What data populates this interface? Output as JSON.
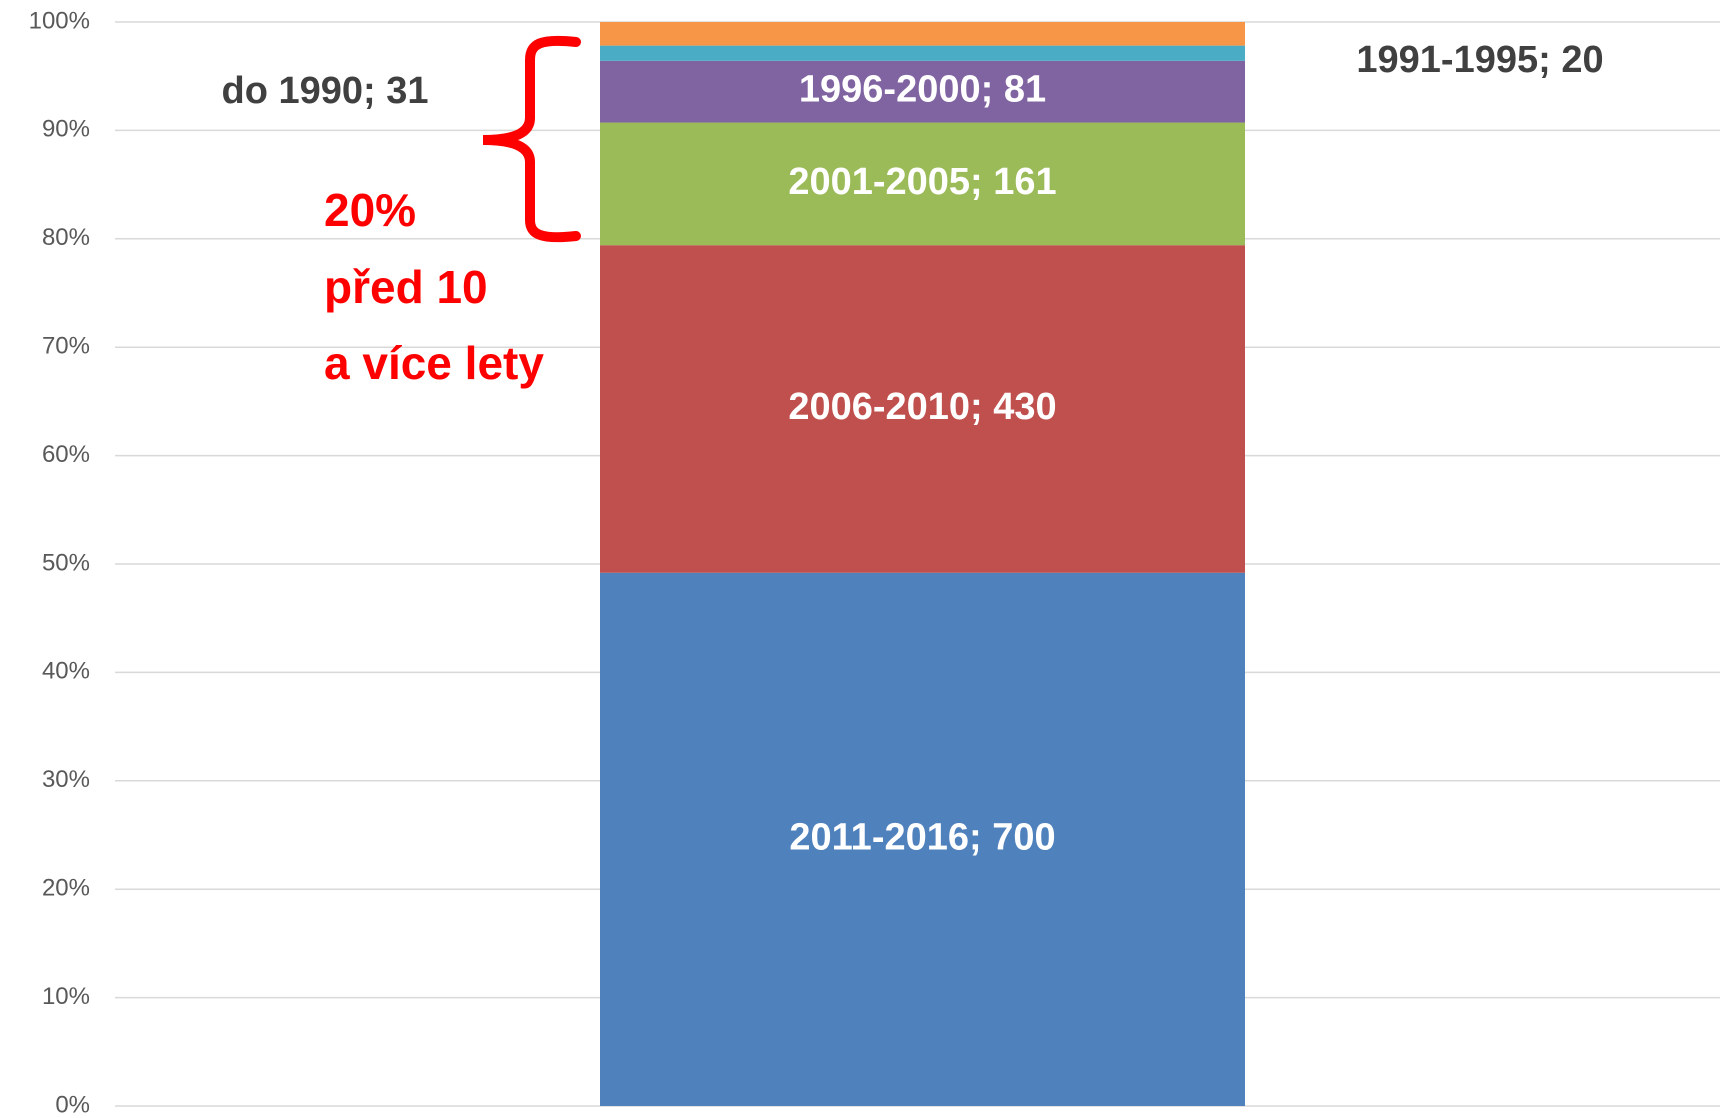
{
  "chart_data": {
    "type": "bar",
    "stacking": "percent",
    "categories": [
      null
    ],
    "series": [
      {
        "color": "#4f81bd",
        "values": [
          700
        ],
        "value_labels": [
          "2011-2016; 700"
        ]
      },
      {
        "color": "#c0504d",
        "values": [
          430
        ],
        "value_labels": [
          "2006-2010; 430"
        ]
      },
      {
        "color": "#9bbb59",
        "values": [
          161
        ],
        "value_labels": [
          "2001-2005; 161"
        ]
      },
      {
        "color": "#8064a2",
        "values": [
          81
        ],
        "value_labels": [
          "1996-2000; 81"
        ]
      },
      {
        "color": "#4bacc6",
        "values": [
          20
        ],
        "value_labels": [
          "1991-1995; 20"
        ]
      },
      {
        "color": "#f79646",
        "values": [
          31
        ],
        "value_labels": [
          "do 1990; 31"
        ]
      }
    ],
    "ylim": [
      0,
      100
    ],
    "yticks": [
      {
        "value": 0,
        "label": "0%"
      },
      {
        "value": 10,
        "label": "10%"
      },
      {
        "value": 20,
        "label": "20%"
      },
      {
        "value": 30,
        "label": "30%"
      },
      {
        "value": 40,
        "label": "40%"
      },
      {
        "value": 50,
        "label": "50%"
      },
      {
        "value": 60,
        "label": "60%"
      },
      {
        "value": 70,
        "label": "70%"
      },
      {
        "value": 80,
        "label": "80%"
      },
      {
        "value": 90,
        "label": "90%"
      },
      {
        "value": 100,
        "label": "100%"
      }
    ],
    "grid": true,
    "annotation": [
      "20%",
      "před 10",
      "a více lety"
    ]
  }
}
